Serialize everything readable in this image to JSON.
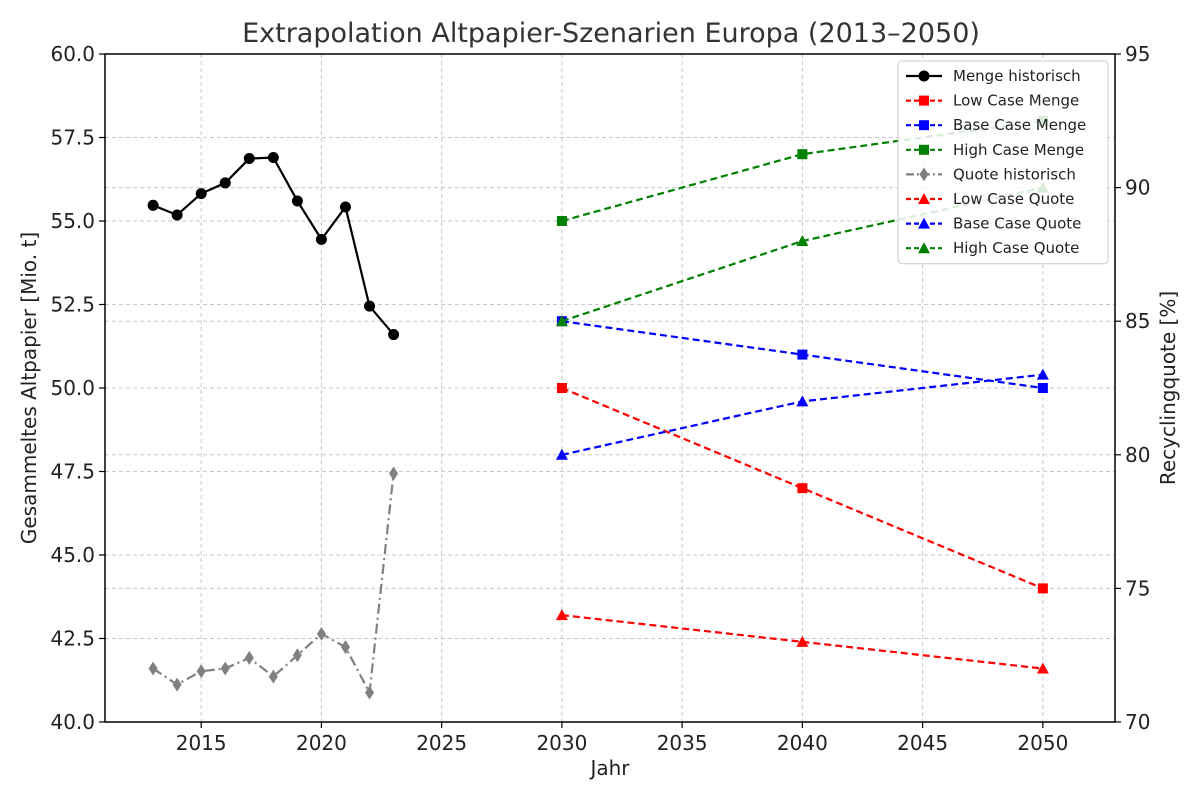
{
  "chart_data": {
    "type": "line",
    "title": "Extrapolation Altpapier-Szenarien Europa (2013–2050)",
    "xlabel": "Jahr",
    "ylabel": "Gesammeltes Altpapier [Mio. t]",
    "y2label": "Recyclingquote [%]",
    "xlim": [
      2011,
      2053
    ],
    "ylim": [
      40.0,
      60.0
    ],
    "y2lim": [
      70,
      95
    ],
    "xticks": [
      2015,
      2020,
      2025,
      2030,
      2035,
      2040,
      2045,
      2050
    ],
    "yticks": [
      "40.0",
      "42.5",
      "45.0",
      "47.5",
      "50.0",
      "52.5",
      "55.0",
      "57.5",
      "60.0"
    ],
    "y2ticks": [
      "70",
      "75",
      "80",
      "85",
      "90",
      "95"
    ],
    "grid": true,
    "legend_position": "top-right",
    "series": [
      {
        "name": "Menge historisch",
        "axis": "left",
        "color": "#000000",
        "marker": "circle",
        "dash": "solid",
        "x": [
          2013,
          2014,
          2015,
          2016,
          2017,
          2018,
          2019,
          2020,
          2021,
          2022,
          2023
        ],
        "values": [
          55.47,
          55.18,
          55.82,
          56.14,
          56.87,
          56.9,
          55.6,
          54.45,
          55.42,
          52.45,
          51.6
        ]
      },
      {
        "name": "Low Case Menge",
        "axis": "left",
        "color": "#ff0000",
        "marker": "square",
        "dash": "dashed",
        "x": [
          2030,
          2040,
          2050
        ],
        "values": [
          50.0,
          47.0,
          44.0
        ]
      },
      {
        "name": "Base Case Menge",
        "axis": "left",
        "color": "#0000ff",
        "marker": "square",
        "dash": "dashed",
        "x": [
          2030,
          2040,
          2050
        ],
        "values": [
          52.0,
          51.0,
          50.0
        ]
      },
      {
        "name": "High Case Menge",
        "axis": "left",
        "color": "#008000",
        "marker": "square",
        "dash": "dashed",
        "x": [
          2030,
          2040,
          2050
        ],
        "values": [
          55.0,
          57.0,
          58.0
        ]
      },
      {
        "name": "Quote historisch",
        "axis": "right",
        "color": "#808080",
        "marker": "diamond",
        "dash": "dashdot",
        "x": [
          2013,
          2014,
          2015,
          2016,
          2017,
          2018,
          2019,
          2020,
          2021,
          2022,
          2023
        ],
        "values": [
          72.0,
          71.4,
          71.9,
          72.0,
          72.4,
          71.7,
          72.5,
          73.3,
          72.8,
          71.1,
          79.3
        ]
      },
      {
        "name": "Low Case Quote",
        "axis": "right",
        "color": "#ff0000",
        "marker": "triangle",
        "dash": "dashed",
        "x": [
          2030,
          2040,
          2050
        ],
        "values": [
          74.0,
          73.0,
          72.0
        ]
      },
      {
        "name": "Base Case Quote",
        "axis": "right",
        "color": "#0000ff",
        "marker": "triangle",
        "dash": "dashed",
        "x": [
          2030,
          2040,
          2050
        ],
        "values": [
          80.0,
          82.0,
          83.0
        ]
      },
      {
        "name": "High Case Quote",
        "axis": "right",
        "color": "#008000",
        "marker": "triangle",
        "dash": "dashed",
        "x": [
          2030,
          2040,
          2050
        ],
        "values": [
          85.0,
          88.0,
          90.0
        ]
      }
    ]
  }
}
